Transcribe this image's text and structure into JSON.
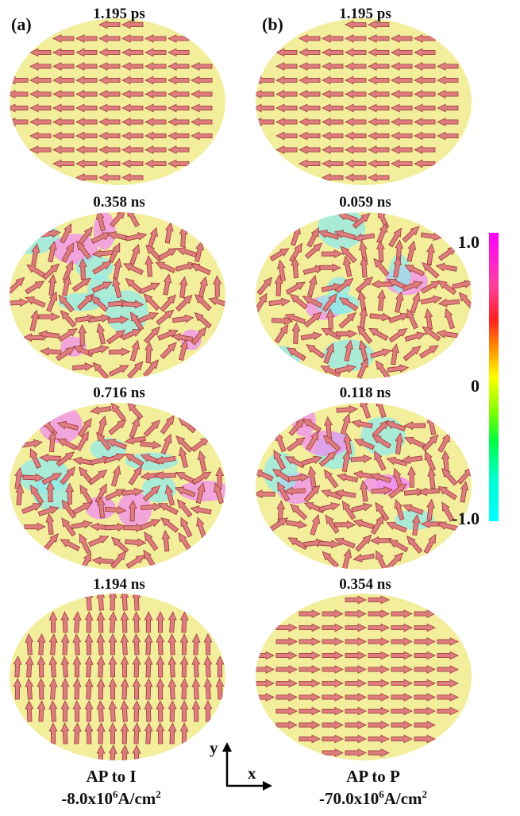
{
  "panels": [
    {
      "label": "(a)",
      "times": [
        "1.195 ps",
        "0.358 ns",
        "0.716 ns",
        "1.194 ns"
      ],
      "caption": "AP to I",
      "current": {
        "prefix": "-8.0x10",
        "exp": "6",
        "unit": "A/cm",
        "unit_exp": "2"
      }
    },
    {
      "label": "(b)",
      "times": [
        "1.195 ps",
        "0.059 ns",
        "0.118 ns",
        "0.354 ns"
      ],
      "caption": "AP to P",
      "current": {
        "prefix": "-70.0x10",
        "exp": "6",
        "unit": "A/cm",
        "unit_exp": "2"
      }
    }
  ],
  "colorbar": {
    "ticks": [
      "1.0",
      "0",
      "-1.0"
    ]
  },
  "axes": {
    "y": "y",
    "x": "x"
  }
}
